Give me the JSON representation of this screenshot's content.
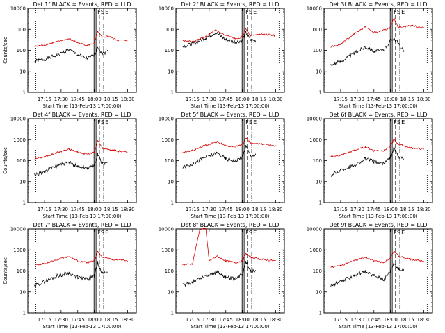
{
  "chart_data": [
    {
      "type": "line",
      "title": "Det 1f BLACK = Events, RED = LLD",
      "ylabel": "Counts/sec",
      "xlabel": "Start Time (13-Feb-13 17:00:00)",
      "ylim": [
        1,
        10000
      ],
      "yscale": "log",
      "x_ticks": [
        "17:15",
        "17:30",
        "17:45",
        "18:00",
        "18:15",
        "18:30"
      ],
      "y_ticks": [
        "1",
        "10",
        "100",
        "1000",
        "10000"
      ],
      "markers": [
        "F",
        "S",
        "E"
      ],
      "series": [
        {
          "color": "#000000",
          "values": [
            [
              17.1,
              30
            ],
            [
              17.25,
              38
            ],
            [
              17.45,
              60
            ],
            [
              17.62,
              110
            ],
            [
              17.75,
              60
            ],
            [
              17.9,
              40
            ],
            [
              18.0,
              60
            ],
            [
              18.05,
              150
            ],
            [
              18.12,
              70
            ],
            [
              18.2,
              90
            ]
          ]
        },
        {
          "color": "#d40000",
          "values": [
            [
              17.1,
              150
            ],
            [
              17.25,
              180
            ],
            [
              17.45,
              260
            ],
            [
              17.62,
              350
            ],
            [
              17.75,
              230
            ],
            [
              17.9,
              170
            ],
            [
              18.0,
              220
            ],
            [
              18.05,
              800
            ],
            [
              18.12,
              400
            ],
            [
              18.2,
              480
            ],
            [
              18.35,
              300
            ],
            [
              18.5,
              300
            ]
          ]
        }
      ]
    },
    {
      "type": "line",
      "title": "Det 2f BLACK = Events, RED = LLD",
      "ylabel": "",
      "xlabel": "Start Time (13-Feb-13 17:00:00)",
      "ylim": [
        1,
        10000
      ],
      "yscale": "log",
      "x_ticks": [
        "17:15",
        "17:30",
        "17:45",
        "18:00",
        "18:15",
        "18:30"
      ],
      "y_ticks": [
        "1",
        "10",
        "100",
        "1000",
        "10000"
      ],
      "markers": [
        "F",
        "S",
        "E"
      ],
      "series": [
        {
          "color": "#000000",
          "values": [
            [
              17.1,
              150
            ],
            [
              17.25,
              200
            ],
            [
              17.45,
              400
            ],
            [
              17.6,
              700
            ],
            [
              17.75,
              320
            ],
            [
              17.9,
              250
            ],
            [
              18.0,
              300
            ],
            [
              18.05,
              700
            ],
            [
              18.12,
              300
            ],
            [
              18.2,
              280
            ]
          ]
        },
        {
          "color": "#d40000",
          "values": [
            [
              17.1,
              300
            ],
            [
              17.25,
              250
            ],
            [
              17.45,
              450
            ],
            [
              17.6,
              900
            ],
            [
              17.75,
              500
            ],
            [
              17.9,
              350
            ],
            [
              18.0,
              450
            ],
            [
              18.05,
              1100
            ],
            [
              18.12,
              500
            ],
            [
              18.3,
              600
            ],
            [
              18.5,
              500
            ]
          ]
        }
      ]
    },
    {
      "type": "line",
      "title": "Det 3f BLACK = Events, RED = LLD",
      "ylabel": "",
      "xlabel": "Start Time (13-Feb-13 17:00:00)",
      "ylim": [
        1,
        10000
      ],
      "yscale": "log",
      "x_ticks": [
        "17:15",
        "17:30",
        "17:45",
        "18:00",
        "18:15",
        "18:30"
      ],
      "y_ticks": [
        "1",
        "10",
        "100",
        "1000",
        "10000"
      ],
      "markers": [
        "F",
        "S",
        "E"
      ],
      "series": [
        {
          "color": "#000000",
          "values": [
            [
              17.1,
              20
            ],
            [
              17.25,
              30
            ],
            [
              17.45,
              70
            ],
            [
              17.62,
              150
            ],
            [
              17.75,
              90
            ],
            [
              17.9,
              100
            ],
            [
              18.0,
              300
            ],
            [
              18.05,
              400
            ],
            [
              18.12,
              200
            ],
            [
              18.2,
              90
            ]
          ]
        },
        {
          "color": "#d40000",
          "values": [
            [
              17.1,
              150
            ],
            [
              17.25,
              200
            ],
            [
              17.45,
              600
            ],
            [
              17.62,
              1300
            ],
            [
              17.75,
              700
            ],
            [
              17.9,
              900
            ],
            [
              18.0,
              1200
            ],
            [
              18.05,
              3500
            ],
            [
              18.12,
              1200
            ],
            [
              18.3,
              1500
            ],
            [
              18.5,
              1200
            ]
          ]
        }
      ]
    },
    {
      "type": "line",
      "title": "Det 4f BLACK = Events, RED = LLD",
      "ylabel": "Counts/sec",
      "xlabel": "Start Time (13-Feb-13 17:00:00)",
      "ylim": [
        1,
        10000
      ],
      "yscale": "log",
      "x_ticks": [
        "17:15",
        "17:30",
        "17:45",
        "18:00",
        "18:15",
        "18:30"
      ],
      "y_ticks": [
        "1",
        "10",
        "100",
        "1000",
        "10000"
      ],
      "markers": [
        "F",
        "S",
        "E"
      ],
      "series": [
        {
          "color": "#000000",
          "values": [
            [
              17.1,
              20
            ],
            [
              17.25,
              30
            ],
            [
              17.45,
              60
            ],
            [
              17.62,
              80
            ],
            [
              17.75,
              55
            ],
            [
              17.9,
              45
            ],
            [
              18.0,
              60
            ],
            [
              18.05,
              200
            ],
            [
              18.12,
              70
            ],
            [
              18.2,
              80
            ]
          ]
        },
        {
          "color": "#d40000",
          "values": [
            [
              17.1,
              120
            ],
            [
              17.25,
              150
            ],
            [
              17.45,
              250
            ],
            [
              17.62,
              350
            ],
            [
              17.75,
              250
            ],
            [
              17.9,
              200
            ],
            [
              18.0,
              250
            ],
            [
              18.05,
              900
            ],
            [
              18.12,
              400
            ],
            [
              18.3,
              300
            ],
            [
              18.5,
              250
            ]
          ]
        }
      ]
    },
    {
      "type": "line",
      "title": "Det 5f BLACK = Events, RED = LLD",
      "ylabel": "",
      "xlabel": "Start Time (13-Feb-13 17:00:00)",
      "ylim": [
        1,
        10000
      ],
      "yscale": "log",
      "x_ticks": [
        "17:15",
        "17:30",
        "17:45",
        "18:00",
        "18:15",
        "18:30"
      ],
      "y_ticks": [
        "1",
        "10",
        "100",
        "1000",
        "10000"
      ],
      "markers": [
        "F",
        "S",
        "E"
      ],
      "series": [
        {
          "color": "#000000",
          "values": [
            [
              17.1,
              50
            ],
            [
              17.25,
              70
            ],
            [
              17.45,
              150
            ],
            [
              17.62,
              230
            ],
            [
              17.75,
              120
            ],
            [
              17.9,
              100
            ],
            [
              18.0,
              150
            ],
            [
              18.05,
              500
            ],
            [
              18.12,
              180
            ],
            [
              18.2,
              180
            ]
          ]
        },
        {
          "color": "#d40000",
          "values": [
            [
              17.1,
              250
            ],
            [
              17.25,
              300
            ],
            [
              17.45,
              550
            ],
            [
              17.62,
              800
            ],
            [
              17.75,
              500
            ],
            [
              17.9,
              450
            ],
            [
              18.0,
              600
            ],
            [
              18.05,
              1200
            ],
            [
              18.12,
              700
            ],
            [
              18.3,
              600
            ],
            [
              18.5,
              500
            ]
          ]
        }
      ]
    },
    {
      "type": "line",
      "title": "Det 6f BLACK = Events, RED = LLD",
      "ylabel": "",
      "xlabel": "Start Time (13-Feb-13 17:00:00)",
      "ylim": [
        1,
        10000
      ],
      "yscale": "log",
      "x_ticks": [
        "17:15",
        "17:30",
        "17:45",
        "18:00",
        "18:15",
        "18:30"
      ],
      "y_ticks": [
        "1",
        "10",
        "100",
        "1000",
        "10000"
      ],
      "markers": [
        "F",
        "S",
        "E"
      ],
      "series": [
        {
          "color": "#000000",
          "values": [
            [
              17.1,
              20
            ],
            [
              17.25,
              35
            ],
            [
              17.45,
              60
            ],
            [
              17.62,
              120
            ],
            [
              17.75,
              90
            ],
            [
              17.9,
              70
            ],
            [
              18.0,
              150
            ],
            [
              18.05,
              400
            ],
            [
              18.12,
              150
            ],
            [
              18.2,
              120
            ]
          ]
        },
        {
          "color": "#d40000",
          "values": [
            [
              17.1,
              150
            ],
            [
              17.25,
              180
            ],
            [
              17.45,
              300
            ],
            [
              17.62,
              450
            ],
            [
              17.75,
              300
            ],
            [
              17.9,
              300
            ],
            [
              18.0,
              500
            ],
            [
              18.05,
              1000
            ],
            [
              18.12,
              600
            ],
            [
              18.3,
              400
            ],
            [
              18.5,
              350
            ]
          ]
        }
      ]
    },
    {
      "type": "line",
      "title": "Det 7f BLACK = Events, RED = LLD",
      "ylabel": "Counts/sec",
      "xlabel": "Start Time (13-Feb-13 17:00:00)",
      "ylim": [
        1,
        10000
      ],
      "yscale": "log",
      "x_ticks": [
        "17:15",
        "17:30",
        "17:45",
        "18:00",
        "18:15",
        "18:30"
      ],
      "y_ticks": [
        "1",
        "10",
        "100",
        "1000",
        "10000"
      ],
      "markers": [
        "F",
        "S",
        "E"
      ],
      "series": [
        {
          "color": "#000000",
          "values": [
            [
              17.1,
              20
            ],
            [
              17.25,
              30
            ],
            [
              17.45,
              60
            ],
            [
              17.62,
              80
            ],
            [
              17.75,
              50
            ],
            [
              17.9,
              40
            ],
            [
              18.0,
              60
            ],
            [
              18.05,
              250
            ],
            [
              18.12,
              80
            ],
            [
              18.2,
              90
            ]
          ]
        },
        {
          "color": "#d40000",
          "values": [
            [
              17.1,
              200
            ],
            [
              17.25,
              220
            ],
            [
              17.45,
              350
            ],
            [
              17.62,
              500
            ],
            [
              17.75,
              300
            ],
            [
              17.9,
              250
            ],
            [
              18.0,
              300
            ],
            [
              18.05,
              900
            ],
            [
              18.12,
              450
            ],
            [
              18.3,
              350
            ],
            [
              18.5,
              300
            ]
          ]
        }
      ]
    },
    {
      "type": "line",
      "title": "Det 8f BLACK = Events, RED = LLD",
      "ylabel": "",
      "xlabel": "Start Time (13-Feb-13 17:00:00)",
      "ylim": [
        1,
        10000
      ],
      "yscale": "log",
      "x_ticks": [
        "17:15",
        "17:30",
        "17:45",
        "18:00",
        "18:15",
        "18:30"
      ],
      "y_ticks": [
        "1",
        "10",
        "100",
        "1000",
        "10000"
      ],
      "markers": [
        "F",
        "S",
        "E"
      ],
      "series": [
        {
          "color": "#000000",
          "values": [
            [
              17.1,
              20
            ],
            [
              17.25,
              30
            ],
            [
              17.45,
              60
            ],
            [
              17.62,
              90
            ],
            [
              17.75,
              50
            ],
            [
              17.9,
              40
            ],
            [
              18.0,
              70
            ],
            [
              18.05,
              300
            ],
            [
              18.12,
              100
            ],
            [
              18.2,
              100
            ]
          ]
        },
        {
          "color": "#d40000",
          "values": [
            [
              17.1,
              200
            ],
            [
              17.25,
              220
            ],
            [
              17.36,
              10000
            ],
            [
              17.45,
              10000
            ],
            [
              17.5,
              300
            ],
            [
              17.62,
              500
            ],
            [
              17.75,
              300
            ],
            [
              17.9,
              250
            ],
            [
              18.0,
              300
            ],
            [
              18.05,
              700
            ],
            [
              18.12,
              450
            ],
            [
              18.3,
              350
            ],
            [
              18.5,
              300
            ]
          ]
        }
      ]
    },
    {
      "type": "line",
      "title": "Det 9f BLACK = Events, RED = LLD",
      "ylabel": "",
      "xlabel": "Start Time (13-Feb-13 17:00:00)",
      "ylim": [
        1,
        10000
      ],
      "yscale": "log",
      "x_ticks": [
        "17:15",
        "17:30",
        "17:45",
        "18:00",
        "18:15",
        "18:30"
      ],
      "y_ticks": [
        "1",
        "10",
        "100",
        "1000",
        "10000"
      ],
      "markers": [
        "F",
        "S",
        "E"
      ],
      "series": [
        {
          "color": "#000000",
          "values": [
            [
              17.1,
              20
            ],
            [
              17.25,
              30
            ],
            [
              17.45,
              60
            ],
            [
              17.62,
              90
            ],
            [
              17.75,
              60
            ],
            [
              17.9,
              40
            ],
            [
              18.0,
              100
            ],
            [
              18.05,
              250
            ],
            [
              18.12,
              120
            ],
            [
              18.2,
              100
            ]
          ]
        },
        {
          "color": "#d40000",
          "values": [
            [
              17.1,
              150
            ],
            [
              17.25,
              180
            ],
            [
              17.45,
              300
            ],
            [
              17.62,
              450
            ],
            [
              17.75,
              300
            ],
            [
              17.9,
              250
            ],
            [
              18.0,
              450
            ],
            [
              18.05,
              900
            ],
            [
              18.12,
              500
            ],
            [
              18.3,
              350
            ],
            [
              18.5,
              300
            ]
          ]
        }
      ]
    }
  ]
}
